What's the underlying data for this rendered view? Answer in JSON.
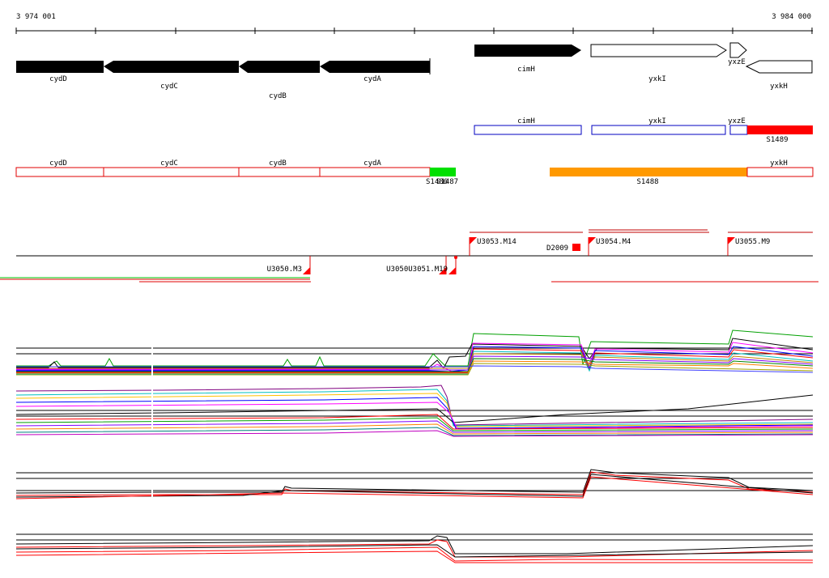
{
  "ruler": {
    "start_label": "3 974 001",
    "end_label": "3 984 000"
  },
  "genes": {
    "cydD": "cydD",
    "cydC": "cydC",
    "cydB": "cydB",
    "cydA": "cydA",
    "cimH": "cimH",
    "yxkI": "yxkI",
    "yxzE": "yxzE",
    "yxkH": "yxkH"
  },
  "segments": {
    "S1486": "S1486",
    "S1487": "S1487",
    "S1488": "S1488",
    "S1489": "S1489"
  },
  "promoters": {
    "U3053_M14": "U3053.M14",
    "D2009": "D2009",
    "U3054_M4": "U3054.M4",
    "U3055_M9": "U3055.M9",
    "U3050_M3": "U3050.M3",
    "U3051_overlap": "U3050U3051.M19"
  },
  "colors": {
    "gene_arrow": "#000000",
    "red_outline": "#e00000",
    "blue_outline": "#0000c0",
    "segment_green": "#00e000",
    "segment_orange": "#ff9900",
    "segment_red": "#ff0000"
  }
}
